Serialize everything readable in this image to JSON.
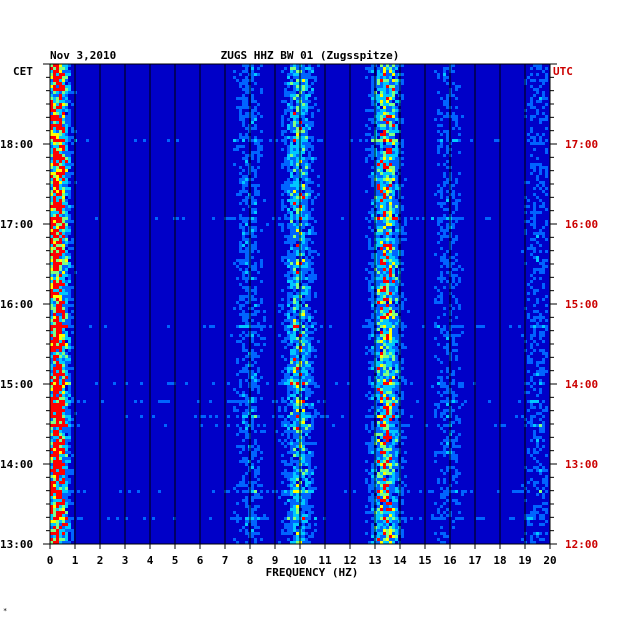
{
  "chart_data": {
    "type": "heatmap",
    "date": "Nov 3,2010",
    "station": "ZUGS HHZ BW 01 (Zugsspitze)",
    "left_timezone": "CET",
    "right_timezone": "UTC",
    "xlabel": "FREQUENCY (HZ)",
    "xlim": [
      0,
      20
    ],
    "x_ticks": [
      "0",
      "1",
      "2",
      "3",
      "4",
      "5",
      "6",
      "7",
      "8",
      "9",
      "10",
      "11",
      "12",
      "13",
      "14",
      "15",
      "16",
      "17",
      "18",
      "19",
      "20"
    ],
    "left_time_ticks": [
      "18:00",
      "17:00",
      "16:00",
      "15:00",
      "14:00",
      "13:00"
    ],
    "right_time_ticks": [
      "17:00",
      "16:00",
      "15:00",
      "14:00",
      "13:00",
      "12:00"
    ],
    "time_range_cet": [
      "13:00",
      "19:00"
    ],
    "energy_bands_hz": [
      {
        "center": 0.3,
        "strength": 1.0
      },
      {
        "center": 8.0,
        "strength": 0.35
      },
      {
        "center": 10.0,
        "strength": 0.6
      },
      {
        "center": 13.5,
        "strength": 0.75
      },
      {
        "center": 16.0,
        "strength": 0.3
      },
      {
        "center": 19.6,
        "strength": 0.3
      }
    ],
    "colors": {
      "background": "#0000c8",
      "low": "#0000ff",
      "mid": "#00c8ff",
      "high_mid": "#ffff00",
      "high": "#ff0000",
      "left_axis_text": "#000000",
      "right_axis_text": "#cc0000"
    }
  },
  "footer_mark": "*"
}
